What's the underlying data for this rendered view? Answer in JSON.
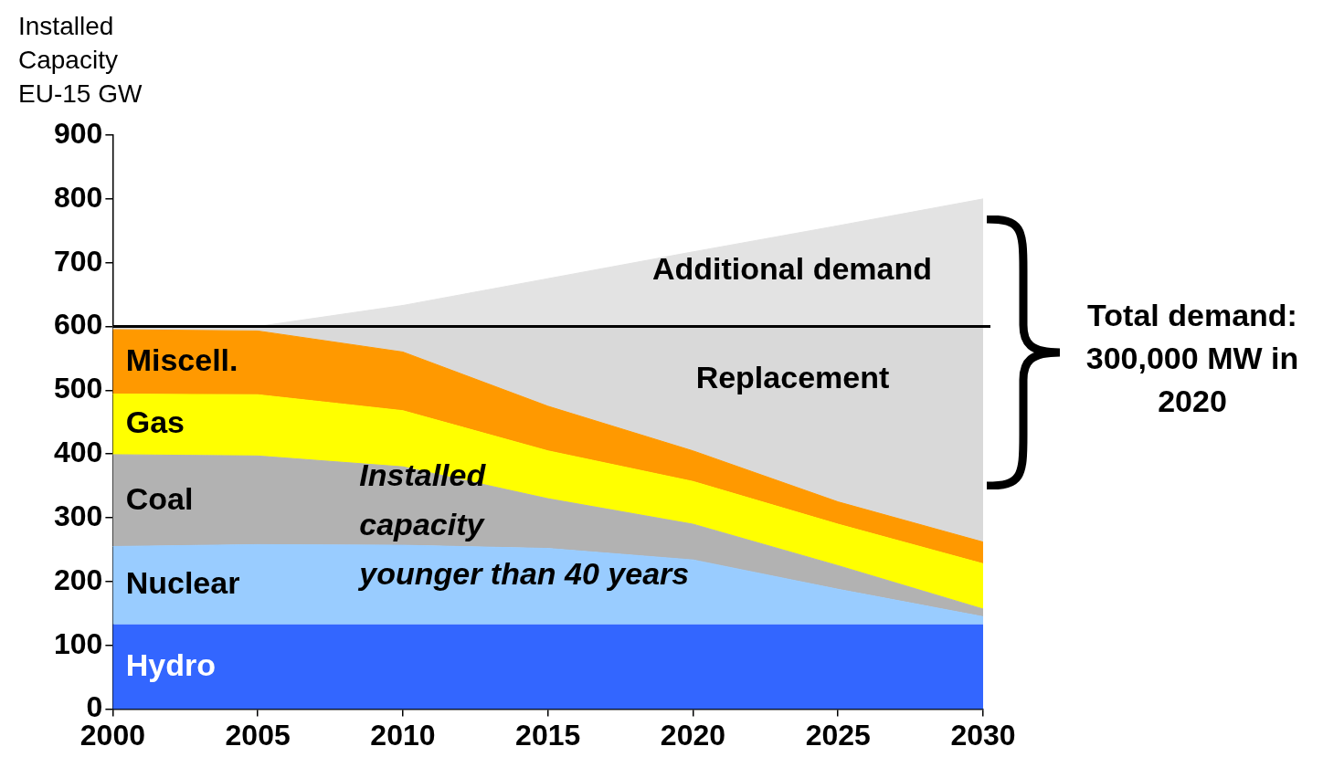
{
  "chart_data": {
    "type": "area",
    "stacked": true,
    "ylabel": "Installed Capacity EU-15 GW",
    "x": [
      2000,
      2005,
      2010,
      2015,
      2020,
      2025,
      2030
    ],
    "xlim": [
      2000,
      2030
    ],
    "xticks": [
      2000,
      2005,
      2010,
      2015,
      2020,
      2025,
      2030
    ],
    "ylim": [
      0,
      900
    ],
    "yticks": [
      0,
      100,
      200,
      300,
      400,
      500,
      600,
      700,
      800,
      900
    ],
    "grid": false,
    "legend": false,
    "series": [
      {
        "name": "Hydro",
        "color": "#3366ff",
        "values": [
          133,
          133,
          133,
          133,
          133,
          133,
          133
        ]
      },
      {
        "name": "Nuclear",
        "color": "#99ccff",
        "values": [
          122,
          125,
          124,
          119,
          101,
          55,
          12
        ]
      },
      {
        "name": "Coal",
        "color": "#b2b2b2",
        "values": [
          144,
          139,
          123,
          78,
          56,
          37,
          12
        ]
      },
      {
        "name": "Gas",
        "color": "#ffff00",
        "values": [
          95,
          96,
          88,
          75,
          67,
          65,
          71
        ]
      },
      {
        "name": "Miscell.",
        "color": "#ff9900",
        "values": [
          101,
          100,
          92,
          70,
          48,
          35,
          34
        ]
      },
      {
        "name": "Replacement",
        "color": "#d9d9d9",
        "values": [
          5,
          7,
          40,
          125,
          195,
          275,
          338
        ]
      },
      {
        "name": "Additional demand",
        "color": "#e3e3e3",
        "values": [
          0,
          0,
          33,
          75,
          117,
          158,
          200
        ]
      }
    ],
    "ref_lines": [
      {
        "axis": "y",
        "value": 600,
        "color": "#000000"
      }
    ],
    "annotations": [
      "Installed capacity younger than 40 years",
      "Total demand: 300,000 MW in 2020"
    ]
  }
}
